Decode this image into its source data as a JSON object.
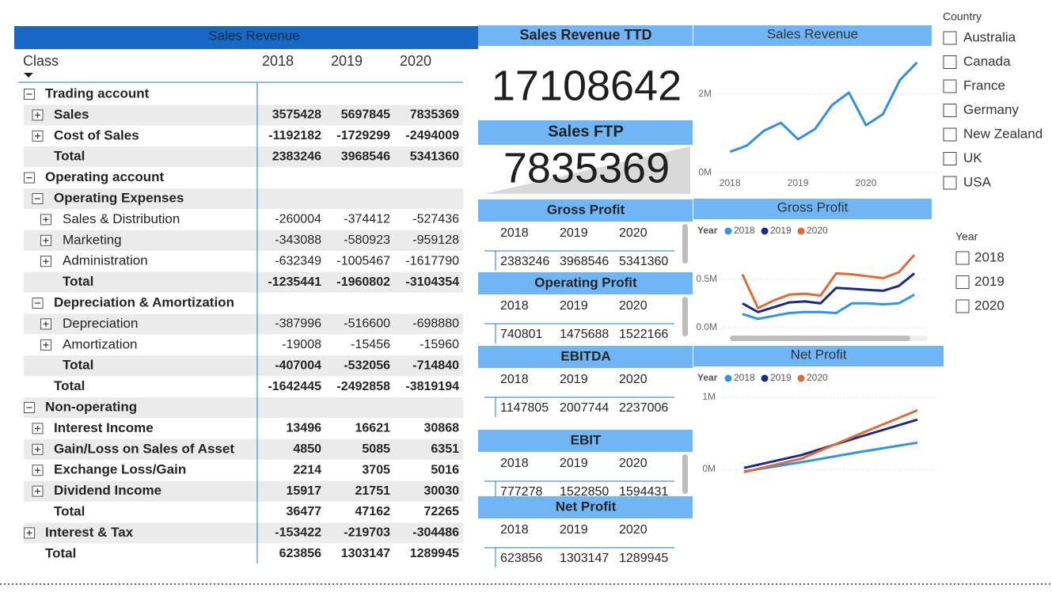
{
  "matrix": {
    "title": "Sales Revenue",
    "class_header": "Class",
    "columns": [
      2018,
      2019,
      2020
    ],
    "rows": [
      {
        "label": "Trading account",
        "expanded": true,
        "children": [
          {
            "label": "Sales",
            "expanded": false,
            "values": [
              3575428,
              5697845,
              7835369
            ]
          },
          {
            "label": "Cost of Sales",
            "expanded": false,
            "values": [
              -1192182,
              -1729299,
              -2494009
            ]
          },
          {
            "label": "Total",
            "values": [
              2383246,
              3968546,
              5341360
            ]
          }
        ]
      },
      {
        "label": "Operating account",
        "expanded": true,
        "children": [
          {
            "label": "Operating Expenses",
            "expanded": true,
            "children": [
              {
                "label": "Sales & Distribution",
                "expanded": false,
                "values": [
                  -260004,
                  -374412,
                  -527436
                ]
              },
              {
                "label": "Marketing",
                "expanded": false,
                "values": [
                  -343088,
                  -580923,
                  -959128
                ]
              },
              {
                "label": "Administration",
                "expanded": false,
                "values": [
                  -632349,
                  -1005467,
                  -1617790
                ]
              },
              {
                "label": "Total",
                "values": [
                  -1235441,
                  -1960802,
                  -3104354
                ]
              }
            ]
          },
          {
            "label": "Depreciation & Amortization",
            "expanded": true,
            "children": [
              {
                "label": "Depreciation",
                "expanded": false,
                "values": [
                  -387996,
                  -516600,
                  -698880
                ]
              },
              {
                "label": "Amortization",
                "expanded": false,
                "values": [
                  -19008,
                  -15456,
                  -15960
                ]
              },
              {
                "label": "Total",
                "values": [
                  -407004,
                  -532056,
                  -714840
                ]
              }
            ]
          },
          {
            "label": "Total",
            "values": [
              -1642445,
              -2492858,
              -3819194
            ]
          }
        ]
      },
      {
        "label": "Non-operating",
        "expanded": true,
        "children": [
          {
            "label": "Interest Income",
            "expanded": false,
            "values": [
              13496,
              16621,
              30868
            ]
          },
          {
            "label": "Gain/Loss on Sales of Asset",
            "expanded": false,
            "values": [
              4850,
              5085,
              6351
            ]
          },
          {
            "label": "Exchange Loss/Gain",
            "expanded": false,
            "values": [
              2214,
              3705,
              5016
            ]
          },
          {
            "label": "Dividend Income",
            "expanded": false,
            "values": [
              15917,
              21751,
              30030
            ]
          },
          {
            "label": "Total",
            "values": [
              36477,
              47162,
              72265
            ]
          }
        ]
      },
      {
        "label": "Interest & Tax",
        "expanded": false,
        "values": [
          -153422,
          -219703,
          -304486
        ]
      },
      {
        "label": "Total",
        "values": [
          623856,
          1303147,
          1289945
        ]
      }
    ]
  },
  "cards": [
    {
      "title": "Sales Revenue TTD",
      "value": 17108642
    },
    {
      "title": "Sales FTP",
      "value": 7835369
    }
  ],
  "tables": [
    {
      "title": "Gross Profit",
      "columns": [
        2018,
        2019,
        2020
      ],
      "values": [
        2383246,
        3968546,
        5341360
      ]
    },
    {
      "title": "Operating Profit",
      "columns": [
        2018,
        2019,
        2020
      ],
      "values": [
        740801,
        1475688,
        1522166
      ]
    },
    {
      "title": "EBITDA",
      "columns": [
        2018,
        2019,
        2020
      ],
      "values": [
        1147805,
        2007744,
        2237006
      ]
    },
    {
      "title": "EBIT",
      "columns": [
        2018,
        2019,
        2020
      ],
      "values": [
        777278,
        1522850,
        1594431
      ]
    },
    {
      "title": "Net Profit",
      "columns": [
        2018,
        2019,
        2020
      ],
      "values": [
        623856,
        1303147,
        1289945
      ]
    }
  ],
  "charts": [
    {
      "type": "line",
      "title": "Sales Revenue",
      "x": [
        2018,
        2018.25,
        2018.5,
        2018.75,
        2019,
        2019.25,
        2019.5,
        2019.75,
        2020,
        2020.25,
        2020.5,
        2020.75
      ],
      "series": [
        {
          "color": "#2f8fe6",
          "values": [
            530000,
            690000,
            1070000,
            1270000,
            850000,
            1110000,
            1720000,
            2040000,
            1210000,
            1490000,
            2360000,
            2810000
          ]
        }
      ],
      "xlim": [
        2017.8,
        2021.06
      ],
      "xticks": [
        2018,
        2019,
        2020
      ],
      "ylim": [
        -280000,
        3090000
      ],
      "yticks": [
        {
          "value": 0,
          "label": "0M"
        },
        {
          "value": 2000000,
          "label": "2M"
        }
      ],
      "grid": true
    },
    {
      "type": "line",
      "title": "Gross Profit",
      "legend_title": "Year",
      "categories": [
        null,
        null,
        null,
        null,
        null,
        null,
        null,
        null,
        null,
        null,
        null,
        null
      ],
      "series": [
        {
          "name": "2018",
          "color": "#2f94e8",
          "values": [
            140000,
            90000,
            120000,
            150000,
            160000,
            160000,
            150000,
            250000,
            250000,
            240000,
            250000,
            340000
          ]
        },
        {
          "name": "2019",
          "color": "#1a2a8a",
          "values": [
            250000,
            160000,
            210000,
            260000,
            270000,
            250000,
            410000,
            400000,
            390000,
            380000,
            430000,
            560000
          ]
        },
        {
          "name": "2020",
          "color": "#e06a35",
          "values": [
            550000,
            200000,
            280000,
            340000,
            350000,
            330000,
            560000,
            550000,
            530000,
            510000,
            570000,
            750000
          ]
        }
      ],
      "ylim": [
        -50000,
        890000
      ],
      "yticks": [
        {
          "value": 0,
          "label": "0.0M"
        },
        {
          "value": 500000,
          "label": "0.5M"
        }
      ],
      "grid": true
    },
    {
      "type": "line",
      "title": "Net Profit",
      "legend_title": "Year",
      "categories": [
        null,
        null,
        null,
        null
      ],
      "series": [
        {
          "name": "2018",
          "color": "#2f94e8",
          "values": [
            -30000,
            100000,
            240000,
            370000
          ]
        },
        {
          "name": "2019",
          "color": "#1a2a8a",
          "values": [
            20000,
            200000,
            450000,
            690000
          ]
        },
        {
          "name": "2020",
          "color": "#e06a35",
          "values": [
            -40000,
            150000,
            490000,
            820000
          ]
        }
      ],
      "ylim": [
        -297000,
        1077000
      ],
      "yticks": [
        {
          "value": 0,
          "label": "0M"
        },
        {
          "value": 1000000,
          "label": "1M"
        }
      ],
      "grid": true
    }
  ],
  "slicers": [
    {
      "title": "Country",
      "items": [
        "Australia",
        "Canada",
        "France",
        "Germany",
        "New Zealand",
        "UK",
        "USA"
      ]
    },
    {
      "title": "Year",
      "items": [
        2018,
        2019,
        2020
      ]
    }
  ]
}
